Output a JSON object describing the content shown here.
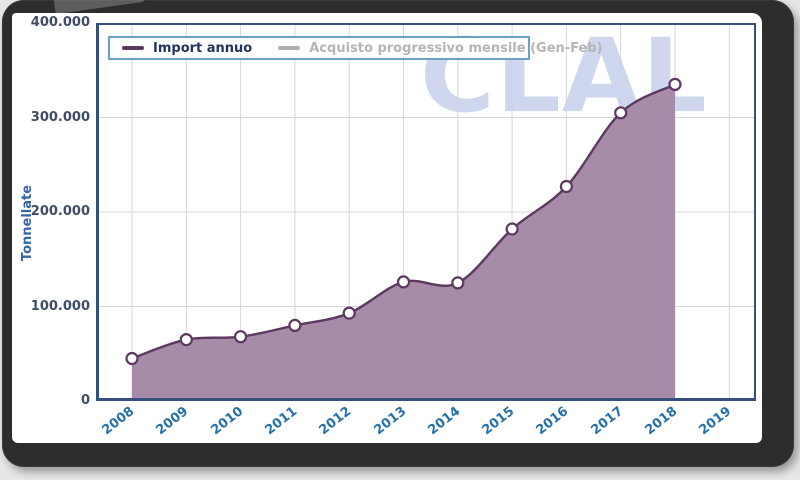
{
  "watermark": {
    "text": "CLAL"
  },
  "y_axis": {
    "title": "Tonnellate",
    "ticks": [
      "400.000",
      "300.000",
      "200.000",
      "100.000",
      "0"
    ]
  },
  "x_axis": {
    "ticks": [
      "2008",
      "2009",
      "2010",
      "2011",
      "2012",
      "2013",
      "2014",
      "2015",
      "2016",
      "2017",
      "2018",
      "2019"
    ]
  },
  "legend": {
    "items": [
      {
        "label": "Import annuo",
        "color": "#5c3a5f",
        "text_color": "#23355c",
        "active": true
      },
      {
        "label": "Acquisto progressivo mensile (Gen-Feb)",
        "color": "#b0aeb0",
        "text_color": "#b5b5b5",
        "active": false
      }
    ]
  },
  "colors": {
    "line": "#5c3a5f",
    "fill": "#a78ca9",
    "marker_fill": "#ffffff",
    "grid": "#d7d7d9",
    "plot_border": "#35507e",
    "x_tick": "#2470a8",
    "y_tick": "#3f4c68",
    "y_title": "#3565a8",
    "watermark": "#c7d1eb",
    "legend_border": "#68a0c8",
    "frame": "#2d2d2d"
  },
  "chart_data": {
    "type": "area",
    "title": "",
    "xlabel": "",
    "ylabel": "Tonnellate",
    "x": [
      2008,
      2009,
      2010,
      2011,
      2012,
      2013,
      2014,
      2015,
      2016,
      2017,
      2018
    ],
    "x_range": [
      2008,
      2019
    ],
    "ylim": [
      0,
      400000
    ],
    "y_tick_step": 100000,
    "grid": true,
    "legend_position": "top-left",
    "series": [
      {
        "name": "Import annuo",
        "visible": true,
        "values": [
          45000,
          65000,
          68000,
          80000,
          93000,
          126000,
          125000,
          182000,
          227000,
          305000,
          335000
        ]
      },
      {
        "name": "Acquisto progressivo mensile (Gen-Feb)",
        "visible": false,
        "values": []
      }
    ]
  }
}
